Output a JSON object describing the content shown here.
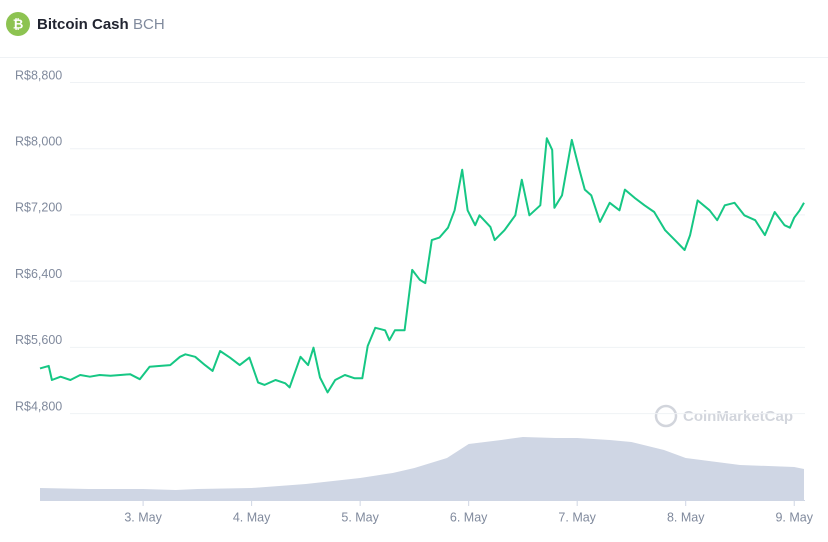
{
  "header": {
    "name": "Bitcoin Cash",
    "symbol": "BCH"
  },
  "chart_data": {
    "type": "line",
    "watermark": "CoinMarketCap",
    "xlim": [
      2.05,
      9.09
    ],
    "xticks": [
      {
        "value": 3,
        "label": "3. May"
      },
      {
        "value": 4,
        "label": "4. May"
      },
      {
        "value": 5,
        "label": "5. May"
      },
      {
        "value": 6,
        "label": "6. May"
      },
      {
        "value": 7,
        "label": "7. May"
      },
      {
        "value": 8,
        "label": "8. May"
      },
      {
        "value": 9,
        "label": "9. May"
      }
    ],
    "ylim": [
      3750,
      8800
    ],
    "yticks": [
      {
        "value": 4800,
        "label": "R$4,800"
      },
      {
        "value": 5600,
        "label": "R$5,600"
      },
      {
        "value": 6400,
        "label": "R$6,400"
      },
      {
        "value": 7200,
        "label": "R$7,200"
      },
      {
        "value": 8000,
        "label": "R$8,000"
      },
      {
        "value": 8800,
        "label": "R$8,800"
      }
    ],
    "grid": true,
    "y2lim": [
      0,
      100
    ],
    "series": [
      {
        "color": "#16c784",
        "x": [
          2.05,
          2.13,
          2.16,
          2.24,
          2.33,
          2.42,
          2.51,
          2.6,
          2.7,
          2.79,
          2.88,
          2.97,
          3.06,
          3.16,
          3.25,
          3.34,
          3.39,
          3.48,
          3.57,
          3.64,
          3.71,
          3.8,
          3.89,
          3.98,
          4.06,
          4.12,
          4.22,
          4.31,
          4.35,
          4.45,
          4.52,
          4.57,
          4.63,
          4.7,
          4.77,
          4.86,
          4.95,
          5.02,
          5.07,
          5.14,
          5.23,
          5.27,
          5.32,
          5.41,
          5.48,
          5.55,
          5.6,
          5.66,
          5.73,
          5.81,
          5.87,
          5.94,
          5.99,
          6.06,
          6.1,
          6.2,
          6.24,
          6.33,
          6.43,
          6.49,
          6.56,
          6.66,
          6.72,
          6.77,
          6.79,
          6.86,
          6.95,
          7.02,
          7.07,
          7.13,
          7.21,
          7.3,
          7.39,
          7.44,
          7.53,
          7.62,
          7.71,
          7.81,
          7.9,
          7.99,
          8.04,
          8.11,
          8.22,
          8.29,
          8.36,
          8.45,
          8.54,
          8.64,
          8.73,
          8.82,
          8.91,
          8.96,
          9.0,
          9.05,
          9.09
        ],
        "values": [
          5340,
          5370,
          5200,
          5240,
          5200,
          5260,
          5240,
          5260,
          5250,
          5260,
          5270,
          5210,
          5360,
          5370,
          5380,
          5480,
          5510,
          5480,
          5380,
          5310,
          5550,
          5470,
          5380,
          5470,
          5170,
          5140,
          5200,
          5160,
          5110,
          5480,
          5380,
          5590,
          5230,
          5050,
          5200,
          5260,
          5220,
          5220,
          5610,
          5830,
          5800,
          5680,
          5800,
          5800,
          6530,
          6410,
          6370,
          6890,
          6920,
          7040,
          7250,
          7740,
          7250,
          7070,
          7190,
          7050,
          6890,
          7010,
          7190,
          7620,
          7190,
          7310,
          8120,
          7980,
          7280,
          7430,
          8100,
          7740,
          7500,
          7430,
          7110,
          7340,
          7250,
          7500,
          7400,
          7310,
          7230,
          7010,
          6890,
          6770,
          6950,
          7370,
          7250,
          7130,
          7310,
          7340,
          7190,
          7130,
          6950,
          7230,
          7070,
          7040,
          7160,
          7250,
          7340
        ]
      },
      {
        "color": "#cfd6e4",
        "axis": "y2",
        "x": [
          2.05,
          2.5,
          3,
          3.3,
          3.5,
          4,
          4.5,
          5,
          5.3,
          5.5,
          5.8,
          6,
          6.3,
          6.5,
          6.8,
          7,
          7.3,
          7.5,
          7.8,
          8,
          8.5,
          9,
          9.09
        ],
        "values": [
          12,
          11,
          11,
          10,
          11,
          12,
          16,
          22,
          27,
          32,
          42,
          56,
          60,
          63,
          62,
          62,
          60,
          58,
          50,
          42,
          35,
          33,
          31
        ]
      }
    ]
  }
}
